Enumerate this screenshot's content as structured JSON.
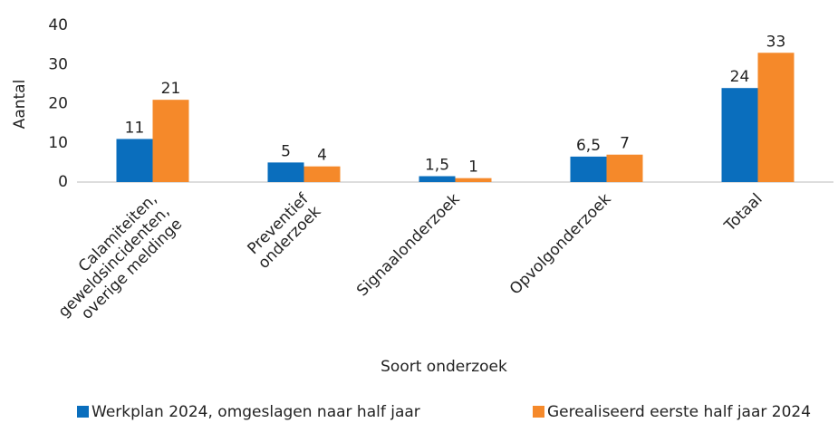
{
  "chart_data": {
    "type": "bar",
    "categories": [
      "Calamiteiten,\ngeweldsincidenten,\noverige meldinge",
      "Preventief\nonderzoek",
      "Signaalonderzoek",
      "Opvolgonderzoek",
      "Totaal"
    ],
    "series": [
      {
        "name": "Werkplan 2024, omgeslagen naar half jaar",
        "color": "#0a6ebd",
        "values": [
          11,
          5,
          1.5,
          6.5,
          24
        ],
        "value_labels": [
          "11",
          "5",
          "1,5",
          "6,5",
          "24"
        ]
      },
      {
        "name": "Gerealiseerd eerste half jaar 2024",
        "color": "#f5892a",
        "values": [
          21,
          4,
          1,
          7,
          33
        ],
        "value_labels": [
          "21",
          "4",
          "1",
          "7",
          "33"
        ]
      }
    ],
    "xlabel": "Soort onderzoek",
    "ylabel": "Aantal",
    "ylim": [
      0,
      40
    ],
    "yticks": [
      0,
      10,
      20,
      30,
      40
    ],
    "grid": false,
    "legend": "bottom"
  }
}
